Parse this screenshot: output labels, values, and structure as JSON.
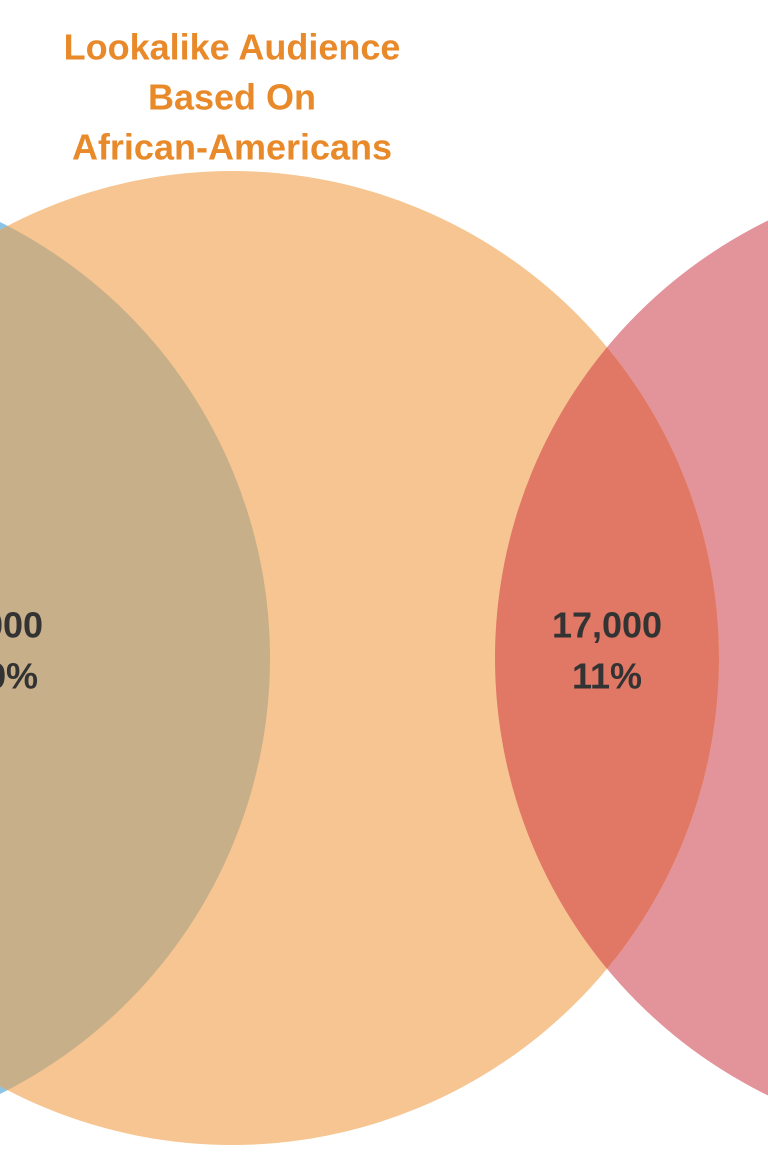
{
  "title": {
    "lines": [
      "Lookalike Audience",
      "Based On",
      "African-Americans"
    ]
  },
  "overlaps": [
    {
      "count": ",000",
      "percent": "9%"
    },
    {
      "count": "17,000",
      "percent": "11%"
    }
  ]
}
